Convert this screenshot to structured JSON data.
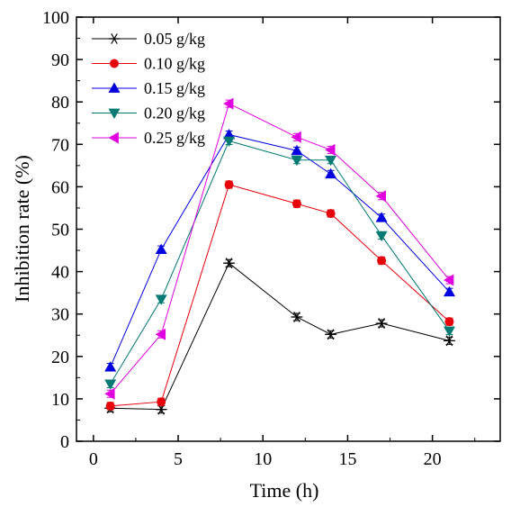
{
  "chart_data": {
    "type": "line",
    "xlabel": "Time (h)",
    "ylabel": "Inhibition rate (%)",
    "xlim": [
      -1,
      24
    ],
    "ylim": [
      0,
      100
    ],
    "xticks": [
      0,
      5,
      10,
      15,
      20
    ],
    "yticks": [
      0,
      10,
      20,
      30,
      40,
      50,
      60,
      70,
      80,
      90,
      100
    ],
    "grid": false,
    "legend_position": "top-left",
    "x": [
      1,
      4,
      8,
      12,
      14,
      17,
      21
    ],
    "series": [
      {
        "name": "0.05 g/kg",
        "color": "#000000",
        "marker": "asterisk",
        "values": [
          7.8,
          7.5,
          42.0,
          29.3,
          25.2,
          27.8,
          23.7
        ]
      },
      {
        "name": "0.10 g/kg",
        "color": "#e8000b",
        "marker": "circle",
        "values": [
          8.3,
          9.3,
          60.5,
          56.0,
          53.7,
          42.6,
          28.2
        ]
      },
      {
        "name": "0.15 g/kg",
        "color": "#0000e0",
        "marker": "triangle-up",
        "values": [
          17.5,
          45.2,
          72.3,
          68.5,
          63.0,
          52.7,
          35.2
        ]
      },
      {
        "name": "0.20 g/kg",
        "color": "#007a73",
        "marker": "triangle-down",
        "values": [
          13.5,
          33.5,
          70.8,
          66.3,
          66.3,
          48.5,
          26.0
        ]
      },
      {
        "name": "0.25 g/kg",
        "color": "#e000e0",
        "marker": "triangle-left",
        "values": [
          11.2,
          25.2,
          79.6,
          71.7,
          68.7,
          57.8,
          38.0
        ]
      }
    ]
  }
}
